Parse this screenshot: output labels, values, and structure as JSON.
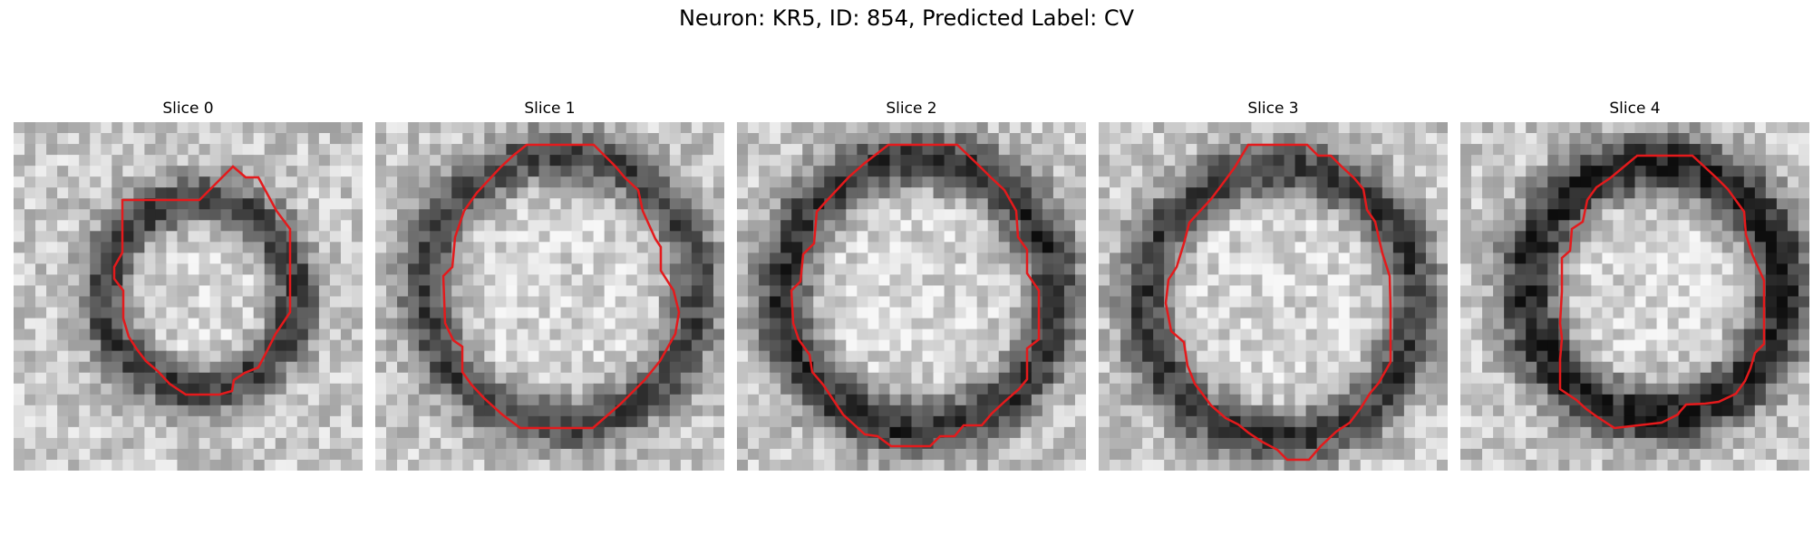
{
  "figure": {
    "title": "Neuron: KR5, ID: 854, Predicted Label: CV"
  },
  "panels": [
    {
      "title": "Slice 0"
    },
    {
      "title": "Slice 1"
    },
    {
      "title": "Slice 2"
    },
    {
      "title": "Slice 3"
    },
    {
      "title": "Slice 4"
    }
  ],
  "colors": {
    "contour": "#e41a1c",
    "background": "#ffffff"
  }
}
